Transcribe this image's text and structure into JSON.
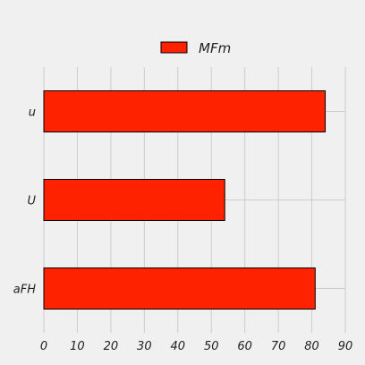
{
  "chart_data": {
    "type": "bar",
    "orientation": "horizontal",
    "categories": [
      "u",
      "U",
      "aFH"
    ],
    "series": [
      {
        "name": "MFm",
        "values": [
          84,
          54,
          81
        ],
        "color": "#ff2200"
      }
    ],
    "xlim": [
      0,
      90
    ],
    "xticks": [
      0,
      10,
      20,
      30,
      40,
      50,
      60,
      70,
      80,
      90
    ],
    "title": "",
    "xlabel": "",
    "ylabel": "",
    "grid": true,
    "legend_placement": "top-center",
    "background": "#f0f0f0",
    "grid_color": "#cccccc"
  }
}
